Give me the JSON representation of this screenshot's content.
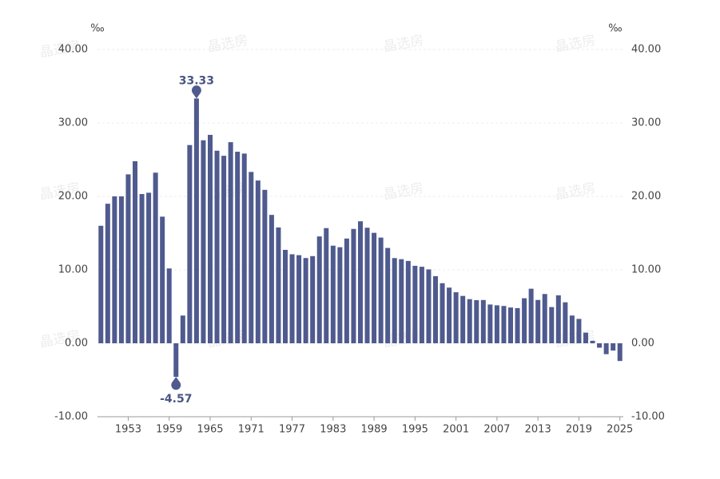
{
  "chart_data": {
    "type": "bar",
    "unit_label": "‰",
    "watermark": "晶选房",
    "color": "#4f5a8e",
    "x": [
      1949,
      1950,
      1951,
      1952,
      1953,
      1954,
      1955,
      1956,
      1957,
      1958,
      1959,
      1960,
      1961,
      1962,
      1963,
      1964,
      1965,
      1966,
      1967,
      1968,
      1969,
      1970,
      1971,
      1972,
      1973,
      1974,
      1975,
      1976,
      1977,
      1978,
      1979,
      1980,
      1981,
      1982,
      1983,
      1984,
      1985,
      1986,
      1987,
      1988,
      1989,
      1990,
      1991,
      1992,
      1993,
      1994,
      1995,
      1996,
      1997,
      1998,
      1999,
      2000,
      2001,
      2002,
      2003,
      2004,
      2005,
      2006,
      2007,
      2008,
      2009,
      2010,
      2011,
      2012,
      2013,
      2014,
      2015,
      2016,
      2017,
      2018,
      2019,
      2020,
      2021,
      2022,
      2023,
      2024,
      2025
    ],
    "values": [
      16.0,
      19.0,
      20.0,
      20.0,
      23.0,
      24.79,
      20.32,
      20.5,
      23.23,
      17.24,
      10.19,
      -4.57,
      3.78,
      26.99,
      33.33,
      27.64,
      28.38,
      26.22,
      25.53,
      27.38,
      26.08,
      25.83,
      23.33,
      22.16,
      20.89,
      17.48,
      15.77,
      12.72,
      12.12,
      12.0,
      11.61,
      11.87,
      14.55,
      15.68,
      13.29,
      13.08,
      14.26,
      15.57,
      16.61,
      15.73,
      15.04,
      14.39,
      12.98,
      11.6,
      11.45,
      11.21,
      10.55,
      10.42,
      10.06,
      9.14,
      8.18,
      7.58,
      6.95,
      6.45,
      6.01,
      5.87,
      5.89,
      5.28,
      5.17,
      5.08,
      4.87,
      4.79,
      6.13,
      7.43,
      5.9,
      6.71,
      4.93,
      6.53,
      5.58,
      3.78,
      3.32,
      1.45,
      0.34,
      -0.6,
      -1.48,
      -0.99,
      -2.41
    ],
    "xlim": [
      1948.5,
      2025.5
    ],
    "xticks": [
      1953,
      1959,
      1965,
      1971,
      1977,
      1983,
      1989,
      1995,
      2001,
      2007,
      2013,
      2019,
      2025
    ],
    "ylim": [
      -10,
      40
    ],
    "yticks": [
      {
        "value": -10,
        "label": "-10.00"
      },
      {
        "value": 0,
        "label": "0.00"
      },
      {
        "value": 10,
        "label": "10.00"
      },
      {
        "value": 20,
        "label": "20.00"
      },
      {
        "value": 30,
        "label": "30.00"
      },
      {
        "value": 40,
        "label": "40.00"
      }
    ],
    "y2lim": [
      -10,
      40
    ],
    "y2ticks": [
      {
        "value": -10,
        "label": "-10.00"
      },
      {
        "value": 0,
        "label": "0.00"
      },
      {
        "value": 10,
        "label": "10.00"
      },
      {
        "value": 20,
        "label": "20.00"
      },
      {
        "value": 30,
        "label": "30.00"
      },
      {
        "value": 40,
        "label": "40.00"
      }
    ],
    "grid": true
  }
}
